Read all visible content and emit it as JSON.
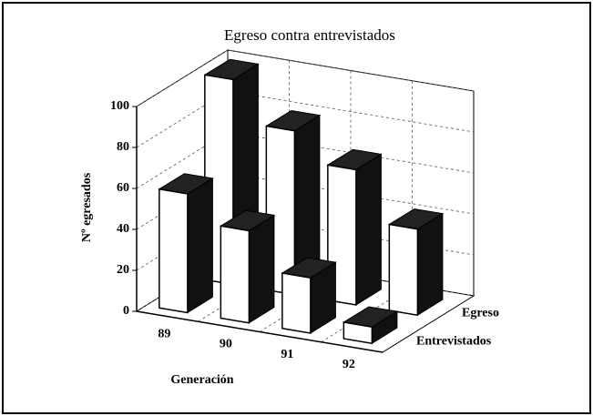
{
  "chart_data": {
    "type": "bar3d",
    "title": "Egreso contra entrevistados",
    "xlabel": "Generación",
    "ylabel": "Nº egresados",
    "categories": [
      "89",
      "90",
      "91",
      "92"
    ],
    "series": [
      {
        "name": "Entrevistados",
        "color": "#ffffff",
        "values": [
          58,
          45,
          27,
          8
        ]
      },
      {
        "name": "Egreso",
        "color": "#ffffff",
        "values": [
          100,
          80,
          66,
          42
        ]
      }
    ],
    "ylim": [
      0,
      100
    ],
    "yticks": [
      0,
      20,
      40,
      60,
      80,
      100
    ],
    "grid": true
  }
}
